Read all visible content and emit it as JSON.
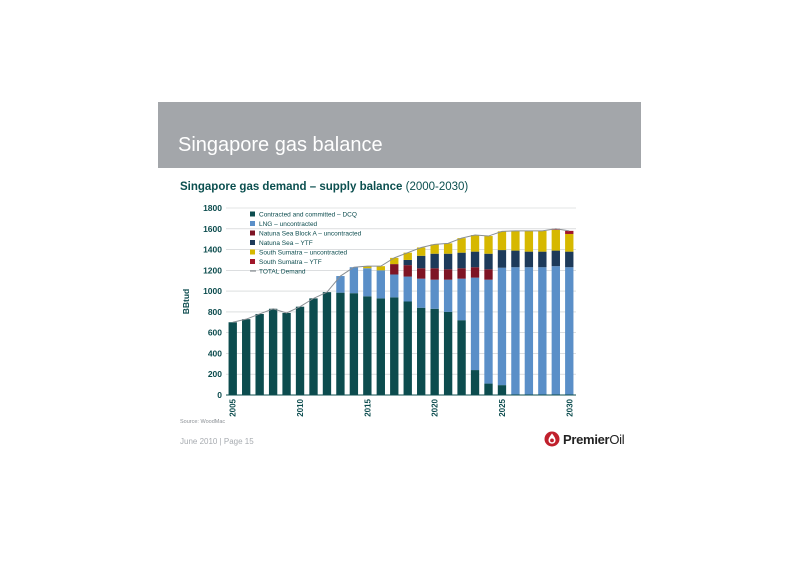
{
  "slide": {
    "title": "Singapore gas balance",
    "source": "Source: WoodMac",
    "footer": "June 2010 | Page 15",
    "logo": {
      "name_bold": "Premier",
      "name_light": "Oil",
      "icon": "premier-oil-drop-icon"
    }
  },
  "chart_data": {
    "type": "bar",
    "stacked": true,
    "title": "Singapore gas demand – supply balance",
    "title_suffix": "(2000-2030)",
    "ylabel": "BBtud",
    "xlabel": "",
    "ylim": [
      0,
      1800
    ],
    "yticks": [
      0,
      200,
      400,
      600,
      800,
      1000,
      1200,
      1400,
      1600,
      1800
    ],
    "grid": true,
    "legend_position": "top-left",
    "categories": [
      2005,
      2006,
      2007,
      2008,
      2009,
      2010,
      2011,
      2012,
      2013,
      2014,
      2015,
      2016,
      2017,
      2018,
      2019,
      2020,
      2021,
      2022,
      2023,
      2024,
      2025,
      2026,
      2027,
      2028,
      2029,
      2030
    ],
    "x_tick_labels": [
      "2005",
      "2010",
      "2015",
      "2020",
      "2025",
      "2030"
    ],
    "series": [
      {
        "name": "Contracted and committed – DCQ",
        "color": "#0c4c4e",
        "values": [
          700,
          730,
          780,
          830,
          790,
          850,
          930,
          990,
          985,
          980,
          950,
          930,
          940,
          900,
          840,
          830,
          800,
          720,
          240,
          110,
          95,
          0,
          0,
          0,
          0,
          0
        ]
      },
      {
        "name": "LNG – uncontracted",
        "color": "#5a8fc8",
        "values": [
          0,
          0,
          0,
          0,
          0,
          0,
          0,
          0,
          160,
          250,
          270,
          270,
          220,
          240,
          280,
          280,
          310,
          400,
          890,
          1000,
          1130,
          1230,
          1230,
          1230,
          1240,
          1230
        ]
      },
      {
        "name": "Natuna Sea Block A – uncontracted",
        "color": "#7e1424",
        "values": [
          0,
          0,
          0,
          0,
          0,
          0,
          0,
          0,
          0,
          0,
          0,
          0,
          100,
          110,
          100,
          110,
          100,
          100,
          100,
          100,
          0,
          0,
          0,
          0,
          0,
          0
        ]
      },
      {
        "name": "Natuna Sea – YTF",
        "color": "#1d3a5a",
        "values": [
          0,
          0,
          0,
          0,
          0,
          0,
          0,
          0,
          0,
          0,
          0,
          0,
          0,
          50,
          120,
          140,
          150,
          150,
          150,
          150,
          170,
          160,
          150,
          150,
          150,
          150
        ]
      },
      {
        "name": "South Sumatra – uncontracted",
        "color": "#d6b800",
        "values": [
          0,
          0,
          0,
          0,
          0,
          0,
          0,
          0,
          0,
          0,
          20,
          40,
          60,
          70,
          80,
          90,
          100,
          140,
          160,
          170,
          180,
          190,
          200,
          200,
          200,
          170
        ]
      },
      {
        "name": "South Sumatra – YTF",
        "color": "#a1162a",
        "values": [
          0,
          0,
          0,
          0,
          0,
          0,
          0,
          0,
          0,
          0,
          0,
          0,
          0,
          0,
          0,
          0,
          0,
          0,
          0,
          0,
          0,
          0,
          0,
          0,
          10,
          30
        ]
      }
    ],
    "total_demand": {
      "name": "TOTAL Demand",
      "color": "#8a8f94",
      "values": [
        700,
        730,
        780,
        830,
        790,
        850,
        930,
        990,
        1145,
        1230,
        1240,
        1240,
        1320,
        1370,
        1420,
        1450,
        1460,
        1510,
        1540,
        1530,
        1575,
        1580,
        1580,
        1580,
        1600,
        1580
      ]
    }
  }
}
